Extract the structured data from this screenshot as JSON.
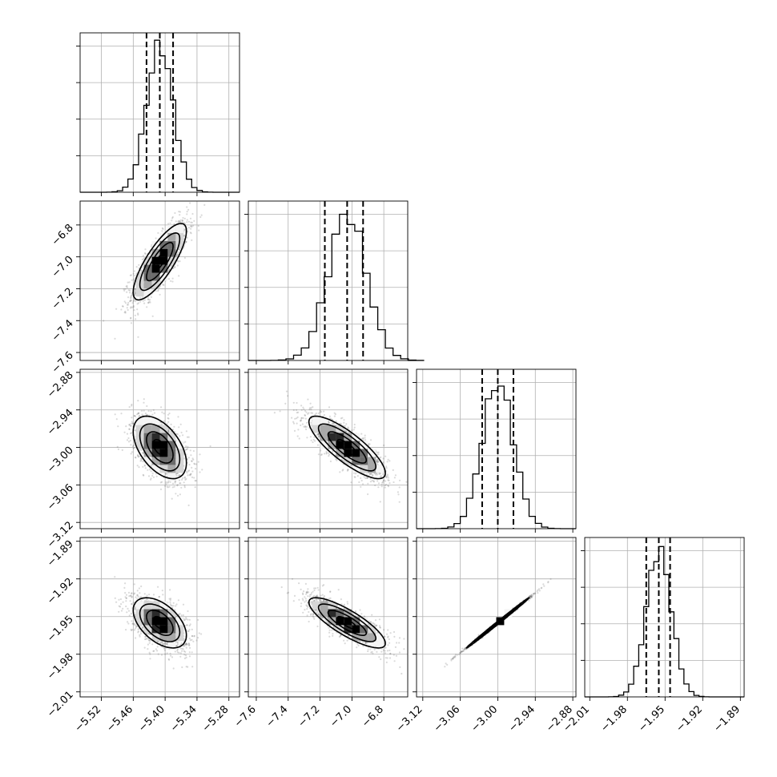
{
  "chart_data": {
    "type": "corner",
    "parameters": [
      {
        "mean": -5.41,
        "std": 0.025,
        "q16": -5.435,
        "q50": -5.41,
        "q84": -5.385,
        "range": [
          -5.56,
          -5.26
        ],
        "ticks": [
          -5.52,
          -5.46,
          -5.4,
          -5.34,
          -5.28
        ],
        "tick_labels": [
          "−5.52",
          "−5.46",
          "−5.40",
          "−5.34",
          "−5.28"
        ]
      },
      {
        "mean": -7.03,
        "std": 0.12,
        "q16": -7.17,
        "q50": -7.03,
        "q84": -6.93,
        "range": [
          -7.65,
          -6.65
        ],
        "ticks": [
          -7.6,
          -7.4,
          -7.2,
          -7.0,
          -6.8
        ],
        "tick_labels": [
          "−7.6",
          "−7.4",
          "−7.2",
          "−7.0",
          "−6.8"
        ]
      },
      {
        "mean": -3.0,
        "std": 0.025,
        "q16": -3.025,
        "q50": -3.0,
        "q84": -2.975,
        "range": [
          -3.13,
          -2.875
        ],
        "ticks": [
          -3.12,
          -3.06,
          -3.0,
          -2.94,
          -2.88
        ],
        "tick_labels": [
          "−3.12",
          "−3.06",
          "−3.00",
          "−2.94",
          "−2.88"
        ]
      },
      {
        "mean": -1.955,
        "std": 0.01,
        "q16": -1.965,
        "q50": -1.955,
        "q84": -1.946,
        "range": [
          -2.014,
          -1.887
        ],
        "ticks": [
          -2.01,
          -1.98,
          -1.95,
          -1.92,
          -1.89
        ],
        "tick_labels": [
          "−2.01",
          "−1.98",
          "−1.95",
          "−1.92",
          "−1.89"
        ]
      }
    ],
    "correlations": [
      [
        1,
        0.8,
        -0.5,
        -0.5
      ],
      [
        0.8,
        1,
        -0.82,
        -0.82
      ],
      [
        -0.5,
        -0.82,
        1,
        0.998
      ],
      [
        -0.5,
        -0.82,
        0.998,
        1
      ]
    ],
    "histogram_bins": 20,
    "diagonal_y_ticks": 4,
    "grid": true
  }
}
